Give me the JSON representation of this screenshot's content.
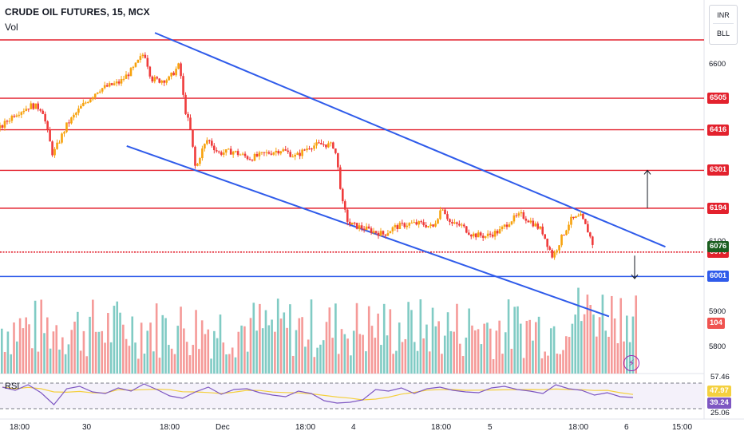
{
  "header": {
    "title": "CRUDE OIL FUTURES, 15, MCX",
    "vol_label": "Vol",
    "rsi_label": "RSI"
  },
  "currency": {
    "top": "INR",
    "bottom": "BLL"
  },
  "colors": {
    "up": "#f7a20c",
    "down": "#ef3b3b",
    "resistance": "#e3212d",
    "channel": "#2f5bea",
    "rsi": "#7e57c2",
    "rsi_ma": "#f4d03f",
    "vol_up": "#80cbc4",
    "vol_down": "#f59a98"
  },
  "icons": {
    "bolt": "lightning-icon"
  },
  "chart_data": {
    "type": "candlestick",
    "title": "CRUDE OIL FUTURES, 15, MCX",
    "y_range": [
      5740,
      6670
    ],
    "x_ticks": [
      "18:00",
      "30",
      "18:00",
      "Dec",
      "18:00",
      "4",
      "18:00",
      "5",
      "18:00",
      "6",
      "15:00"
    ],
    "y_ticks": [
      "6600",
      "6100",
      "5900",
      "5800"
    ],
    "horizontal_levels": [
      {
        "value": 6670,
        "color": "#e3212d",
        "label": ""
      },
      {
        "value": 6505,
        "color": "#e3212d",
        "label": "6505"
      },
      {
        "value": 6416,
        "color": "#e3212d",
        "label": "6416"
      },
      {
        "value": 6301,
        "color": "#e3212d",
        "label": "6301"
      },
      {
        "value": 6194,
        "color": "#e3212d",
        "label": "6194"
      },
      {
        "value": 6070,
        "color": "#e3212d",
        "label": "6070",
        "style": "dotted"
      },
      {
        "value": 6001,
        "color": "#2f5bea",
        "label": "6001"
      }
    ],
    "last_price": "6076",
    "channel_lines": [
      {
        "from": [
          0.22,
          6690
        ],
        "to": [
          0.945,
          6085
        ]
      },
      {
        "from": [
          0.18,
          6370
        ],
        "to": [
          0.865,
          5888
        ]
      }
    ],
    "price_path": [
      [
        0.0,
        6420
      ],
      [
        0.02,
        6460
      ],
      [
        0.045,
        6485
      ],
      [
        0.06,
        6475
      ],
      [
        0.075,
        6345
      ],
      [
        0.095,
        6430
      ],
      [
        0.115,
        6480
      ],
      [
        0.14,
        6530
      ],
      [
        0.17,
        6550
      ],
      [
        0.19,
        6590
      ],
      [
        0.205,
        6635
      ],
      [
        0.215,
        6560
      ],
      [
        0.225,
        6555
      ],
      [
        0.24,
        6560
      ],
      [
        0.255,
        6600
      ],
      [
        0.262,
        6480
      ],
      [
        0.27,
        6420
      ],
      [
        0.278,
        6300
      ],
      [
        0.285,
        6350
      ],
      [
        0.295,
        6390
      ],
      [
        0.31,
        6350
      ],
      [
        0.33,
        6355
      ],
      [
        0.355,
        6335
      ],
      [
        0.38,
        6350
      ],
      [
        0.4,
        6360
      ],
      [
        0.42,
        6340
      ],
      [
        0.44,
        6370
      ],
      [
        0.46,
        6375
      ],
      [
        0.475,
        6370
      ],
      [
        0.482,
        6280
      ],
      [
        0.486,
        6210
      ],
      [
        0.495,
        6150
      ],
      [
        0.52,
        6135
      ],
      [
        0.545,
        6120
      ],
      [
        0.56,
        6140
      ],
      [
        0.58,
        6150
      ],
      [
        0.6,
        6150
      ],
      [
        0.615,
        6140
      ],
      [
        0.628,
        6200
      ],
      [
        0.64,
        6150
      ],
      [
        0.655,
        6145
      ],
      [
        0.67,
        6120
      ],
      [
        0.69,
        6115
      ],
      [
        0.71,
        6130
      ],
      [
        0.725,
        6160
      ],
      [
        0.74,
        6175
      ],
      [
        0.755,
        6155
      ],
      [
        0.77,
        6130
      ],
      [
        0.785,
        6055
      ],
      [
        0.795,
        6100
      ],
      [
        0.81,
        6160
      ],
      [
        0.825,
        6170
      ],
      [
        0.835,
        6130
      ],
      [
        0.845,
        6076
      ]
    ],
    "volume": {
      "last_label": "104"
    },
    "rsi": {
      "levels": [
        "57.46",
        "25.06"
      ],
      "current": "47.97",
      "ma": "39.24",
      "series": [
        52,
        48,
        55,
        45,
        30,
        50,
        53,
        46,
        44,
        51,
        47,
        56,
        49,
        41,
        38,
        46,
        52,
        43,
        49,
        50,
        45,
        42,
        40,
        47,
        44,
        35,
        32,
        33,
        36,
        49,
        47,
        51,
        44,
        50,
        52,
        48,
        46,
        45,
        51,
        53,
        49,
        47,
        44,
        55,
        50,
        48,
        42,
        45,
        40,
        39
      ]
    },
    "arrows": [
      {
        "from": 6194,
        "to": 6301,
        "direction": "up"
      },
      {
        "from": 6060,
        "to": 5990,
        "direction": "down"
      }
    ]
  }
}
